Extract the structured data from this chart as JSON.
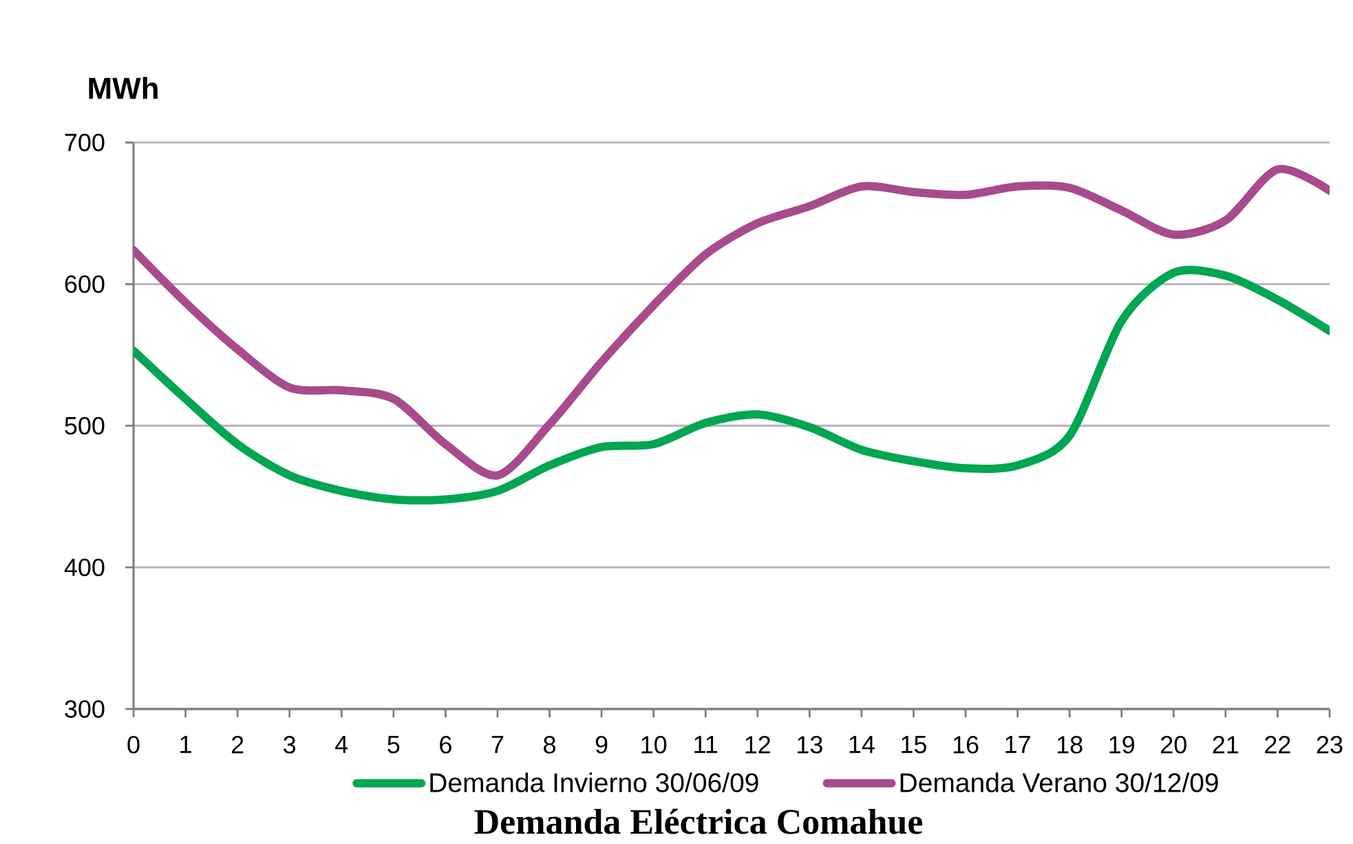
{
  "chart_data": {
    "type": "line",
    "title": "Demanda Eléctrica Comahue",
    "ylabel": "MWh",
    "x": [
      0,
      1,
      2,
      3,
      4,
      5,
      6,
      7,
      8,
      9,
      10,
      11,
      12,
      13,
      14,
      15,
      16,
      17,
      18,
      19,
      20,
      21,
      22,
      23
    ],
    "series": [
      {
        "name": "Demanda Invierno 30/06/09",
        "color": "#00a651",
        "values": [
          553,
          519,
          487,
          465,
          454,
          448,
          448,
          454,
          472,
          485,
          487,
          502,
          508,
          499,
          483,
          475,
          470,
          472,
          493,
          574,
          608,
          606,
          589,
          567
        ]
      },
      {
        "name": "Demanda Verano 30/12/09",
        "color": "#a84b8c",
        "values": [
          624,
          587,
          554,
          527,
          525,
          519,
          487,
          465,
          501,
          545,
          585,
          621,
          643,
          655,
          669,
          665,
          663,
          669,
          668,
          652,
          635,
          645,
          681,
          666
        ]
      }
    ],
    "xlim": [
      0,
      23
    ],
    "ylim": [
      300,
      700
    ],
    "xticks": [
      0,
      1,
      2,
      3,
      4,
      5,
      6,
      7,
      8,
      9,
      10,
      11,
      12,
      13,
      14,
      15,
      16,
      17,
      18,
      19,
      20,
      21,
      22,
      23
    ],
    "yticks": [
      300,
      400,
      500,
      600,
      700
    ],
    "grid": "y",
    "legend": "bottom",
    "line_style": "solid"
  }
}
